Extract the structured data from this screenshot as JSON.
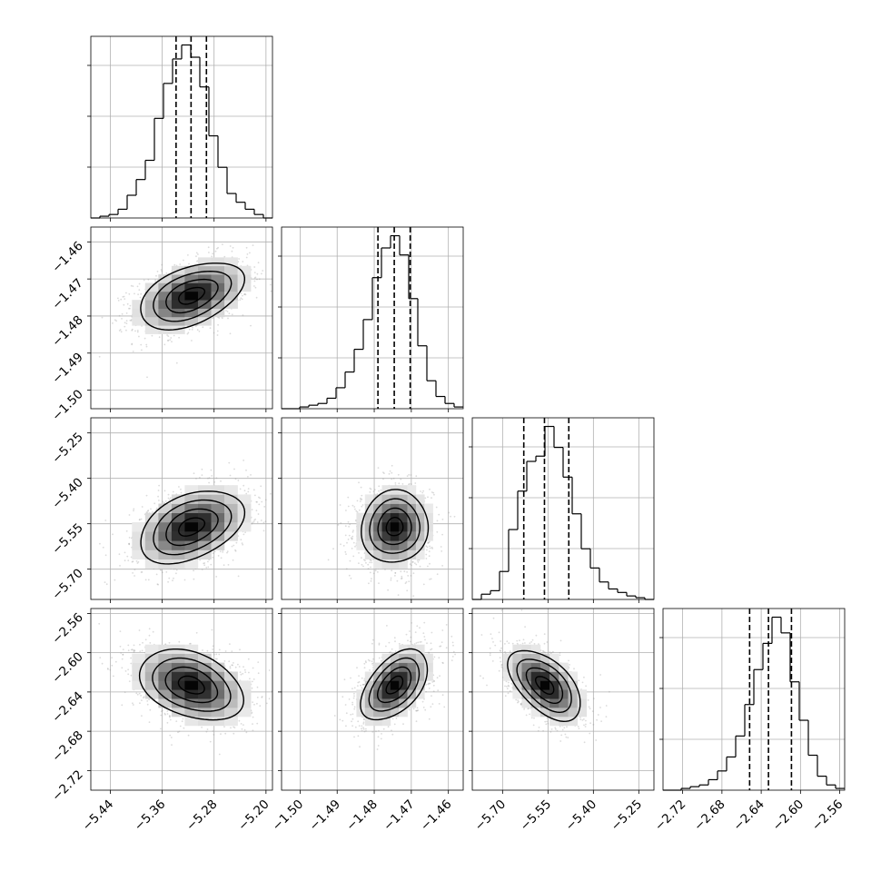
{
  "chart_data": {
    "type": "corner",
    "grid": true,
    "histogram_bins": 20,
    "parameters": [
      {
        "range": [
          -5.47,
          -5.19
        ],
        "mean": -5.315,
        "sigma": 0.04,
        "quantiles": [
          -5.3386,
          -5.3155,
          -5.2918
        ],
        "ticks": [
          -5.44,
          -5.36,
          -5.28,
          -5.2
        ],
        "tick_labels": [
          "−5.44",
          "−5.36",
          "−5.28",
          "−5.20"
        ],
        "hist": [
          0,
          1,
          2,
          5,
          13,
          22,
          33,
          57,
          77,
          91,
          99,
          92,
          75,
          47,
          29,
          14,
          9,
          5,
          2,
          0
        ]
      },
      {
        "range": [
          -1.505,
          -1.456
        ],
        "mean": -1.4745,
        "sigma": 0.0045,
        "quantiles": [
          -1.479,
          -1.4746,
          -1.4703
        ],
        "ticks": [
          -1.5,
          -1.49,
          -1.48,
          -1.47,
          -1.46
        ],
        "tick_labels": [
          "−1.50",
          "−1.49",
          "−1.48",
          "−1.47",
          "−1.46"
        ],
        "hist": [
          0,
          0,
          1,
          2,
          3,
          6,
          12,
          21,
          34,
          51,
          75,
          92,
          99,
          88,
          63,
          36,
          16,
          7,
          3,
          1
        ]
      },
      {
        "range": [
          -5.8,
          -5.2
        ],
        "mean": -5.56,
        "sigma": 0.06,
        "quantiles": [
          -5.6299,
          -5.5616,
          -5.4812
        ],
        "ticks": [
          -5.7,
          -5.55,
          -5.4,
          -5.25
        ],
        "tick_labels": [
          "−5.70",
          "−5.55",
          "−5.40",
          "−5.25"
        ],
        "hist": [
          0,
          3,
          5,
          16,
          40,
          62,
          79,
          82,
          99,
          87,
          70,
          49,
          29,
          18,
          10,
          6,
          4,
          2,
          1,
          0
        ]
      },
      {
        "range": [
          -2.74,
          -2.555
        ],
        "mean": -2.633,
        "sigma": 0.018,
        "quantiles": [
          -2.6518,
          -2.6326,
          -2.6092
        ],
        "ticks": [
          -2.72,
          -2.68,
          -2.64,
          -2.6,
          -2.56
        ],
        "tick_labels": [
          "−2.72",
          "−2.68",
          "−2.64",
          "−2.60",
          "−2.56"
        ],
        "hist": [
          0,
          0,
          1,
          2,
          3,
          6,
          11,
          19,
          31,
          49,
          69,
          84,
          99,
          90,
          62,
          40,
          20,
          8,
          3,
          1
        ]
      }
    ],
    "correlations": {
      "1-0": 0.45,
      "2-0": 0.4,
      "2-1": 0.05,
      "3-0": -0.35,
      "3-1": 0.5,
      "3-2": -0.55
    },
    "contour_levels_sigma": [
      0.5,
      1.0,
      1.5,
      2.0
    ]
  }
}
